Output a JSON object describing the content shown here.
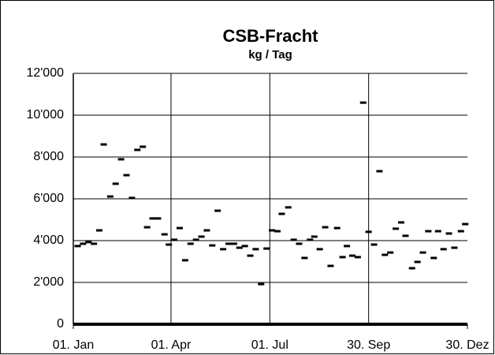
{
  "chart_data": {
    "type": "scatter",
    "title": "CSB-Fracht",
    "subtitle": "kg / Tag",
    "series": [
      {
        "color": "#000000",
        "x": [
          4,
          9,
          14,
          19,
          24,
          28,
          34,
          39,
          44,
          49,
          54,
          59,
          64,
          68,
          73,
          78,
          84,
          88,
          93,
          98,
          103,
          108,
          113,
          118,
          123,
          128,
          133,
          138,
          143,
          148,
          153,
          158,
          163,
          168,
          173,
          178,
          183,
          188,
          192,
          198,
          203,
          208,
          213,
          218,
          222,
          227,
          232,
          237,
          243,
          248,
          252,
          257,
          262,
          267,
          272,
          277,
          282,
          287,
          292,
          297,
          302,
          306,
          312,
          317,
          322,
          327,
          332,
          336,
          341,
          346,
          351,
          357,
          361
        ],
        "values": [
          3740,
          3850,
          3930,
          3850,
          4490,
          8600,
          6110,
          6720,
          7890,
          7130,
          6040,
          8340,
          8490,
          4640,
          5060,
          5060,
          4300,
          3810,
          4040,
          4600,
          3060,
          3850,
          4040,
          4190,
          4490,
          3770,
          5430,
          3590,
          3850,
          3850,
          3660,
          3740,
          3280,
          3590,
          1920,
          3620,
          4490,
          4450,
          5280,
          5590,
          4040,
          3850,
          3170,
          4040,
          4190,
          3590,
          4640,
          2790,
          4600,
          3210,
          3740,
          3280,
          3210,
          10600,
          4420,
          3810,
          7320,
          3320,
          3430,
          4570,
          4870,
          4230,
          2680,
          2980,
          3430,
          4450,
          3170,
          4450,
          3590,
          4340,
          3660,
          4450,
          4790
        ]
      }
    ],
    "xlim": [
      0,
      363
    ],
    "xticks": [
      {
        "value": 0,
        "label": "01. Jan"
      },
      {
        "value": 90,
        "label": "01. Apr"
      },
      {
        "value": 181,
        "label": "01. Jul"
      },
      {
        "value": 272,
        "label": "30. Sep"
      },
      {
        "value": 363,
        "label": "30. Dez"
      }
    ],
    "ylim": [
      0,
      12000
    ],
    "yticks": [
      0,
      {
        "value": 2000,
        "label": "2'000"
      },
      {
        "value": 4000,
        "label": "4'000"
      },
      {
        "value": 6000,
        "label": "6'000"
      },
      {
        "value": 8000,
        "label": "8'000"
      },
      {
        "value": 10000,
        "label": "10'000"
      },
      {
        "value": 12000,
        "label": "12'000"
      }
    ],
    "grid": true
  }
}
